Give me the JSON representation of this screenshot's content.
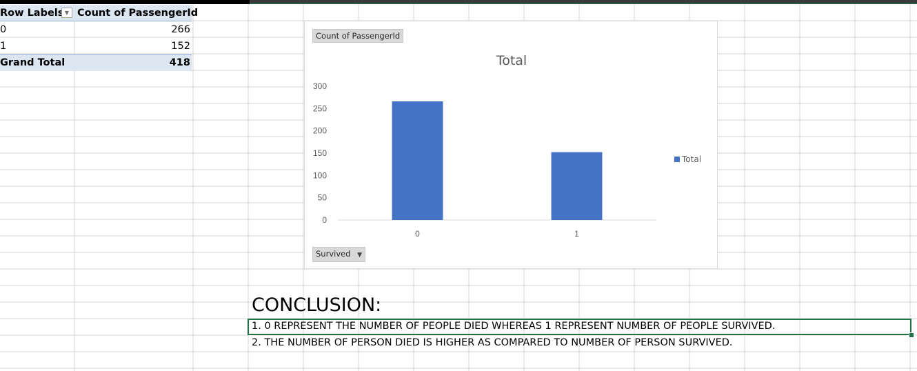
{
  "pivot": {
    "header": {
      "row_labels": "Row Labels",
      "count_label": "Count of PassengerId",
      "filter_icon": "dropdown-arrow"
    },
    "rows": [
      {
        "label": "0",
        "value": "266"
      },
      {
        "label": "1",
        "value": "152"
      }
    ],
    "grand_total": {
      "label": "Grand Total",
      "value": "418"
    }
  },
  "chart": {
    "value_field_button": "Count of PassengerId",
    "axis_field_button": "Survived",
    "legend_label": "Total",
    "accent_color": "#4472c4"
  },
  "chart_data": {
    "type": "bar",
    "title": "Total",
    "categories": [
      "0",
      "1"
    ],
    "series": [
      {
        "name": "Total",
        "values": [
          266,
          152
        ]
      }
    ],
    "ylim": [
      0,
      300
    ],
    "yticks": [
      0,
      50,
      100,
      150,
      200,
      250,
      300
    ],
    "grid": false,
    "legend_position": "right"
  },
  "conclusion": {
    "title": "CONCLUSION:",
    "lines": [
      "1. 0 REPRESENT THE NUMBER OF PEOPLE DIED WHEREAS 1 REPRESENT NUMBER OF PEOPLE SURVIVED.",
      "2. THE NUMBER OF PERSON DIED IS HIGHER AS COMPARED TO NUMBER OF PERSON SURVIVED."
    ]
  },
  "colors": {
    "grid_line": "#d4d4d4",
    "pivot_header_bg": "#dce6f1",
    "selection_border": "#217346"
  }
}
